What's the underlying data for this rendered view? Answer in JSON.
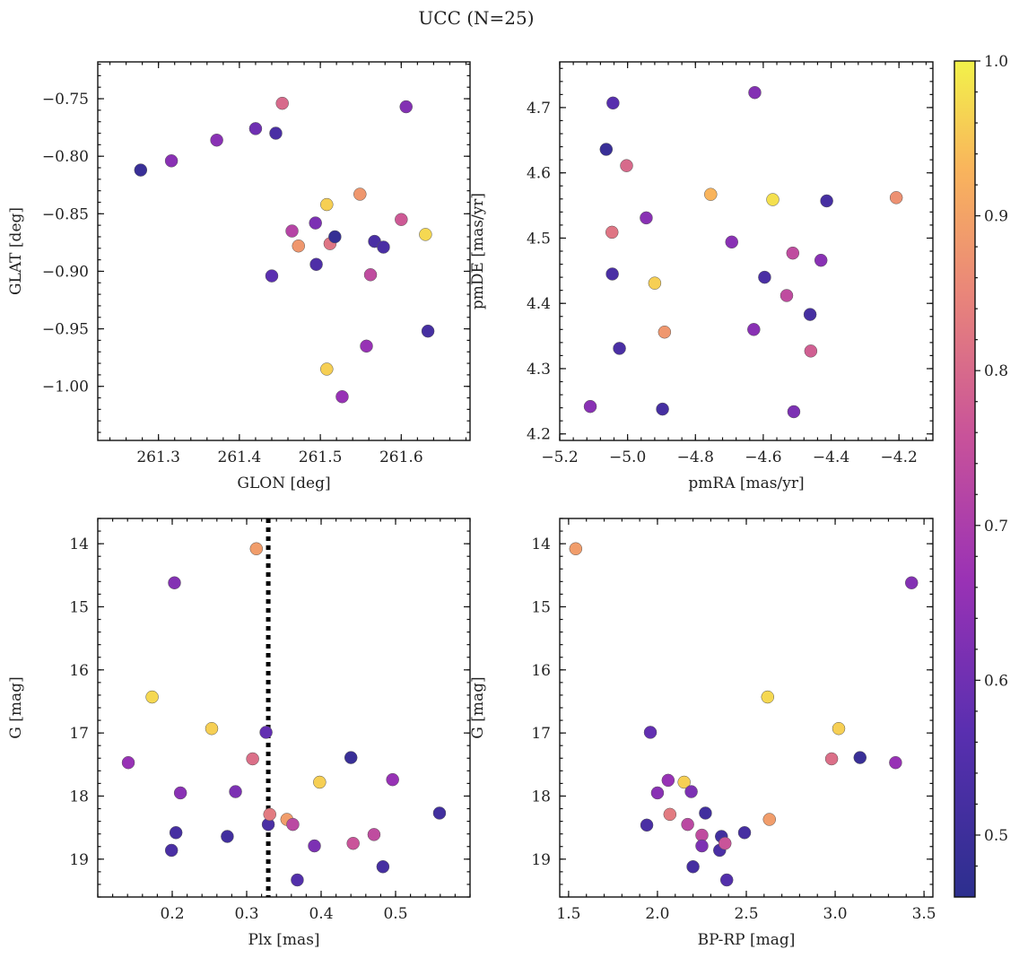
{
  "title": "UCC (N=25)",
  "colorbar": {
    "min": 0.46,
    "max": 1.0,
    "ticks": [
      0.5,
      0.6,
      0.7,
      0.8,
      0.9,
      1.0
    ]
  },
  "chart_data": [
    {
      "type": "scatter",
      "id": "glon-glat",
      "xlabel": "GLON [deg]",
      "ylabel": "GLAT [deg]",
      "xlim": [
        261.225,
        261.685
      ],
      "ylim": [
        -1.047,
        -0.718
      ],
      "y_inverted": false,
      "xticks": [
        261.3,
        261.4,
        261.5,
        261.6
      ],
      "yticks": [
        -1.0,
        -0.95,
        -0.9,
        -0.85,
        -0.8,
        -0.75
      ],
      "xtick_labels": [
        "261.3",
        "261.4",
        "261.5",
        "261.6"
      ],
      "ytick_labels": [
        "−1.00",
        "−0.95",
        "−0.90",
        "−0.85",
        "−0.80",
        "−0.75"
      ],
      "points": [
        {
          "x": 261.278,
          "y": -0.812,
          "c": 0.49
        },
        {
          "x": 261.316,
          "y": -0.804,
          "c": 0.64
        },
        {
          "x": 261.372,
          "y": -0.786,
          "c": 0.64
        },
        {
          "x": 261.42,
          "y": -0.776,
          "c": 0.6
        },
        {
          "x": 261.445,
          "y": -0.78,
          "c": 0.53
        },
        {
          "x": 261.453,
          "y": -0.754,
          "c": 0.8
        },
        {
          "x": 261.44,
          "y": -0.904,
          "c": 0.57
        },
        {
          "x": 261.465,
          "y": -0.865,
          "c": 0.72
        },
        {
          "x": 261.473,
          "y": -0.878,
          "c": 0.88
        },
        {
          "x": 261.494,
          "y": -0.858,
          "c": 0.62
        },
        {
          "x": 261.495,
          "y": -0.894,
          "c": 0.54
        },
        {
          "x": 261.508,
          "y": -0.842,
          "c": 0.96
        },
        {
          "x": 261.512,
          "y": -0.876,
          "c": 0.82
        },
        {
          "x": 261.518,
          "y": -0.87,
          "c": 0.48
        },
        {
          "x": 261.508,
          "y": -0.985,
          "c": 0.96
        },
        {
          "x": 261.527,
          "y": -1.009,
          "c": 0.66
        },
        {
          "x": 261.549,
          "y": -0.833,
          "c": 0.88
        },
        {
          "x": 261.557,
          "y": -0.965,
          "c": 0.66
        },
        {
          "x": 261.562,
          "y": -0.903,
          "c": 0.74
        },
        {
          "x": 261.567,
          "y": -0.874,
          "c": 0.53
        },
        {
          "x": 261.578,
          "y": -0.879,
          "c": 0.53
        },
        {
          "x": 261.6,
          "y": -0.855,
          "c": 0.77
        },
        {
          "x": 261.606,
          "y": -0.757,
          "c": 0.63
        },
        {
          "x": 261.63,
          "y": -0.868,
          "c": 0.97
        },
        {
          "x": 261.633,
          "y": -0.952,
          "c": 0.52
        }
      ]
    },
    {
      "type": "scatter",
      "id": "pmra-pmde",
      "xlabel": "pmRA [mas/yr]",
      "ylabel": "pmDE [mas/yr]",
      "xlim": [
        -5.2,
        -4.1
      ],
      "ylim": [
        4.19,
        4.77
      ],
      "y_inverted": false,
      "xticks": [
        -5.2,
        -5.0,
        -4.8,
        -4.6,
        -4.4,
        -4.2
      ],
      "yticks": [
        4.2,
        4.3,
        4.4,
        4.5,
        4.6,
        4.7
      ],
      "xtick_labels": [
        "−5.2",
        "−5.0",
        "−4.8",
        "−4.6",
        "−4.4",
        "−4.2"
      ],
      "ytick_labels": [
        "4.2",
        "4.3",
        "4.4",
        "4.5",
        "4.6",
        "4.7"
      ],
      "points": [
        {
          "x": -5.11,
          "y": 4.242,
          "c": 0.64
        },
        {
          "x": -5.063,
          "y": 4.636,
          "c": 0.49
        },
        {
          "x": -5.043,
          "y": 4.707,
          "c": 0.56
        },
        {
          "x": -5.046,
          "y": 4.509,
          "c": 0.82
        },
        {
          "x": -5.045,
          "y": 4.445,
          "c": 0.53
        },
        {
          "x": -5.024,
          "y": 4.331,
          "c": 0.53
        },
        {
          "x": -5.003,
          "y": 4.611,
          "c": 0.8
        },
        {
          "x": -4.945,
          "y": 4.531,
          "c": 0.64
        },
        {
          "x": -4.92,
          "y": 4.431,
          "c": 0.96
        },
        {
          "x": -4.897,
          "y": 4.238,
          "c": 0.52
        },
        {
          "x": -4.891,
          "y": 4.356,
          "c": 0.88
        },
        {
          "x": -4.755,
          "y": 4.567,
          "c": 0.93
        },
        {
          "x": -4.693,
          "y": 4.494,
          "c": 0.64
        },
        {
          "x": -4.625,
          "y": 4.723,
          "c": 0.63
        },
        {
          "x": -4.628,
          "y": 4.36,
          "c": 0.64
        },
        {
          "x": -4.596,
          "y": 4.44,
          "c": 0.53
        },
        {
          "x": -4.572,
          "y": 4.559,
          "c": 0.98
        },
        {
          "x": -4.531,
          "y": 4.412,
          "c": 0.74
        },
        {
          "x": -4.513,
          "y": 4.477,
          "c": 0.74
        },
        {
          "x": -4.51,
          "y": 4.234,
          "c": 0.62
        },
        {
          "x": -4.462,
          "y": 4.383,
          "c": 0.52
        },
        {
          "x": -4.46,
          "y": 4.327,
          "c": 0.78
        },
        {
          "x": -4.43,
          "y": 4.466,
          "c": 0.64
        },
        {
          "x": -4.413,
          "y": 4.557,
          "c": 0.52
        },
        {
          "x": -4.208,
          "y": 4.562,
          "c": 0.87
        }
      ]
    },
    {
      "type": "scatter",
      "id": "plx-g",
      "xlabel": "Plx [mas]",
      "ylabel": "G [mag]",
      "xlim": [
        0.1,
        0.6
      ],
      "ylim": [
        13.6,
        19.6
      ],
      "y_inverted": true,
      "xticks": [
        0.2,
        0.3,
        0.4,
        0.5
      ],
      "yticks": [
        14,
        15,
        16,
        17,
        18,
        19
      ],
      "xtick_labels": [
        "0.2",
        "0.3",
        "0.4",
        "0.5"
      ],
      "ytick_labels": [
        "14",
        "15",
        "16",
        "17",
        "18",
        "19"
      ],
      "vline": 0.329,
      "points": [
        {
          "x": 0.141,
          "y": 17.47,
          "c": 0.66
        },
        {
          "x": 0.173,
          "y": 16.43,
          "c": 0.97
        },
        {
          "x": 0.199,
          "y": 18.86,
          "c": 0.53
        },
        {
          "x": 0.203,
          "y": 14.62,
          "c": 0.63
        },
        {
          "x": 0.205,
          "y": 18.58,
          "c": 0.52
        },
        {
          "x": 0.211,
          "y": 17.95,
          "c": 0.64
        },
        {
          "x": 0.253,
          "y": 16.93,
          "c": 0.96
        },
        {
          "x": 0.274,
          "y": 18.64,
          "c": 0.51
        },
        {
          "x": 0.285,
          "y": 17.93,
          "c": 0.62
        },
        {
          "x": 0.308,
          "y": 17.41,
          "c": 0.81
        },
        {
          "x": 0.313,
          "y": 14.08,
          "c": 0.89
        },
        {
          "x": 0.326,
          "y": 16.99,
          "c": 0.58
        },
        {
          "x": 0.329,
          "y": 18.45,
          "c": 0.53
        },
        {
          "x": 0.331,
          "y": 18.29,
          "c": 0.83
        },
        {
          "x": 0.354,
          "y": 18.37,
          "c": 0.89
        },
        {
          "x": 0.362,
          "y": 18.45,
          "c": 0.73
        },
        {
          "x": 0.368,
          "y": 19.33,
          "c": 0.55
        },
        {
          "x": 0.391,
          "y": 18.79,
          "c": 0.62
        },
        {
          "x": 0.398,
          "y": 17.78,
          "c": 0.96
        },
        {
          "x": 0.44,
          "y": 17.39,
          "c": 0.49
        },
        {
          "x": 0.443,
          "y": 18.75,
          "c": 0.76
        },
        {
          "x": 0.471,
          "y": 18.61,
          "c": 0.74
        },
        {
          "x": 0.483,
          "y": 19.12,
          "c": 0.52
        },
        {
          "x": 0.496,
          "y": 17.74,
          "c": 0.66
        },
        {
          "x": 0.559,
          "y": 18.27,
          "c": 0.51
        }
      ]
    },
    {
      "type": "scatter",
      "id": "bprp-g",
      "xlabel": "BP-RP [mag]",
      "ylabel": "G [mag]",
      "xlim": [
        1.45,
        3.55
      ],
      "ylim": [
        13.6,
        19.6
      ],
      "y_inverted": true,
      "xticks": [
        1.5,
        2.0,
        2.5,
        3.0,
        3.5
      ],
      "yticks": [
        14,
        15,
        16,
        17,
        18,
        19
      ],
      "xtick_labels": [
        "1.5",
        "2.0",
        "2.5",
        "3.0",
        "3.5"
      ],
      "ytick_labels": [
        "14",
        "15",
        "16",
        "17",
        "18",
        "19"
      ],
      "points": [
        {
          "x": 1.54,
          "y": 14.08,
          "c": 0.89
        },
        {
          "x": 1.94,
          "y": 18.46,
          "c": 0.53
        },
        {
          "x": 1.96,
          "y": 16.99,
          "c": 0.58
        },
        {
          "x": 2.0,
          "y": 17.95,
          "c": 0.64
        },
        {
          "x": 2.06,
          "y": 17.75,
          "c": 0.66
        },
        {
          "x": 2.07,
          "y": 18.29,
          "c": 0.83
        },
        {
          "x": 2.15,
          "y": 17.78,
          "c": 0.96
        },
        {
          "x": 2.17,
          "y": 18.45,
          "c": 0.73
        },
        {
          "x": 2.19,
          "y": 17.93,
          "c": 0.62
        },
        {
          "x": 2.2,
          "y": 19.12,
          "c": 0.52
        },
        {
          "x": 2.25,
          "y": 18.62,
          "c": 0.74
        },
        {
          "x": 2.25,
          "y": 18.79,
          "c": 0.62
        },
        {
          "x": 2.27,
          "y": 18.27,
          "c": 0.51
        },
        {
          "x": 2.35,
          "y": 18.86,
          "c": 0.53
        },
        {
          "x": 2.36,
          "y": 18.64,
          "c": 0.51
        },
        {
          "x": 2.38,
          "y": 18.75,
          "c": 0.76
        },
        {
          "x": 2.39,
          "y": 19.33,
          "c": 0.55
        },
        {
          "x": 2.49,
          "y": 18.58,
          "c": 0.52
        },
        {
          "x": 2.62,
          "y": 16.43,
          "c": 0.97
        },
        {
          "x": 2.63,
          "y": 18.37,
          "c": 0.89
        },
        {
          "x": 2.98,
          "y": 17.41,
          "c": 0.81
        },
        {
          "x": 3.02,
          "y": 16.93,
          "c": 0.96
        },
        {
          "x": 3.14,
          "y": 17.39,
          "c": 0.49
        },
        {
          "x": 3.34,
          "y": 17.47,
          "c": 0.66
        },
        {
          "x": 3.43,
          "y": 14.62,
          "c": 0.63
        }
      ]
    }
  ]
}
